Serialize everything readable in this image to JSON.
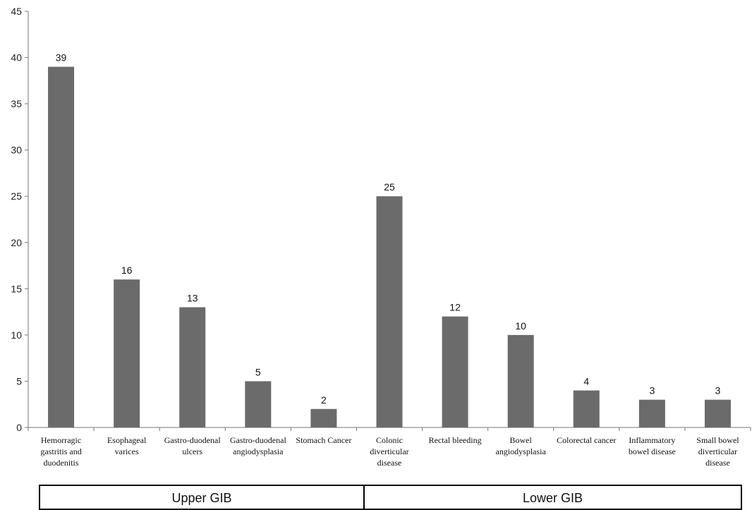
{
  "chart_data": {
    "type": "bar",
    "title": "",
    "xlabel": "",
    "ylabel": "",
    "ylim": [
      0,
      45
    ],
    "yticks": [
      0,
      5,
      10,
      15,
      20,
      25,
      30,
      35,
      40,
      45
    ],
    "grid": false,
    "legend": "none",
    "bar_color": "#6b6b6b",
    "categories": [
      [
        "Hemorragic",
        "gastritis and",
        "duodenitis"
      ],
      [
        "Esophageal",
        "varices"
      ],
      [
        "Gastro-duodenal",
        "ulcers"
      ],
      [
        "Gastro-duodenal",
        "angiodysplasia"
      ],
      [
        "Stomach Cancer"
      ],
      [
        "Colonic",
        "diverticular",
        "disease"
      ],
      [
        "Rectal bleeding"
      ],
      [
        "Bowel",
        "angiodysplasia"
      ],
      [
        "Colorectal cancer"
      ],
      [
        "Inflammatory",
        "bowel disease"
      ],
      [
        "Small bowel",
        "diverticular",
        "disease"
      ]
    ],
    "values": [
      39,
      16,
      13,
      5,
      2,
      25,
      12,
      10,
      4,
      3,
      3
    ],
    "groups": [
      {
        "label": "Upper GIB",
        "start": 0,
        "end": 4
      },
      {
        "label": "Lower GIB",
        "start": 5,
        "end": 10
      }
    ]
  }
}
